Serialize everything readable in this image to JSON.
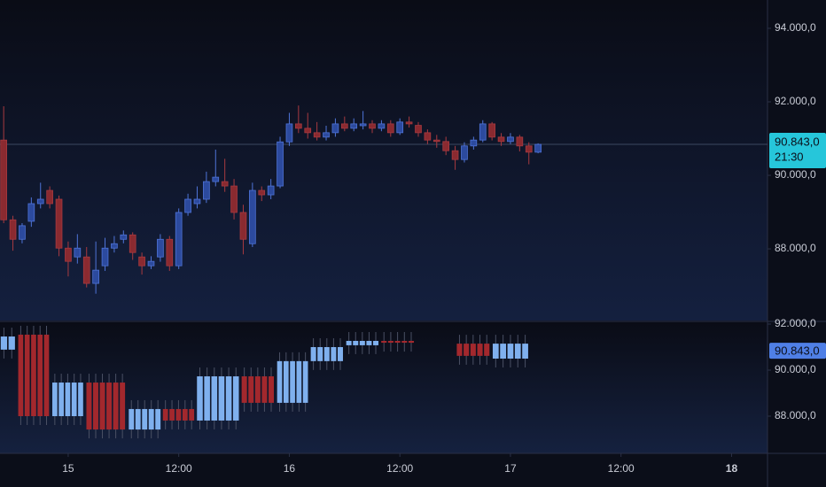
{
  "chart_data": [
    {
      "type": "candlestick",
      "x": [
        -7,
        -6,
        -5,
        -4,
        -3,
        -2,
        -1,
        0,
        1,
        2,
        3,
        4,
        5,
        6,
        7,
        8,
        9,
        10,
        11,
        12,
        13,
        14,
        15,
        16,
        17,
        18,
        19,
        20,
        21,
        22,
        23,
        24,
        25,
        26,
        27,
        28,
        29,
        30,
        31,
        32,
        33,
        34,
        35,
        36,
        37,
        38,
        39,
        40,
        41,
        42,
        43,
        44,
        45,
        46,
        47,
        48,
        49,
        50,
        51
      ],
      "open": [
        90960,
        88790,
        88260,
        88750,
        89230,
        89590,
        89350,
        88020,
        87780,
        87780,
        87060,
        87540,
        88020,
        88260,
        88380,
        87780,
        87540,
        87780,
        88260,
        87540,
        88990,
        89230,
        89350,
        89830,
        89830,
        89710,
        88990,
        88140,
        89590,
        89470,
        89710,
        90910,
        91400,
        91280,
        91160,
        91040,
        91160,
        91400,
        91280,
        91350,
        91400,
        91280,
        91400,
        91160,
        91450,
        91360,
        91160,
        90960,
        90920,
        90670,
        90430,
        90800,
        90960,
        91400,
        91040,
        90920,
        91040,
        90800,
        90630
      ],
      "high": [
        91880,
        88900,
        88700,
        89400,
        89800,
        89700,
        89450,
        88200,
        88400,
        88050,
        88200,
        88300,
        88350,
        88500,
        88450,
        87900,
        87800,
        88400,
        88350,
        89100,
        89500,
        89700,
        90100,
        90700,
        90450,
        89900,
        89200,
        89800,
        89700,
        89900,
        91050,
        91700,
        91900,
        91700,
        91450,
        91350,
        91550,
        91600,
        91550,
        91750,
        91500,
        91500,
        91500,
        91550,
        91600,
        91450,
        91250,
        91100,
        91050,
        90800,
        90900,
        91050,
        91500,
        91450,
        91150,
        91150,
        91100,
        90900,
        90870
      ],
      "low": [
        88700,
        87950,
        88150,
        88600,
        89100,
        89100,
        87800,
        87250,
        87600,
        86950,
        86780,
        87400,
        87900,
        88150,
        87700,
        87300,
        87450,
        87650,
        87400,
        87450,
        88900,
        89100,
        89250,
        89700,
        89550,
        88800,
        87850,
        88050,
        89300,
        89350,
        89650,
        90800,
        91150,
        91000,
        90950,
        90950,
        91050,
        91200,
        91200,
        91250,
        91150,
        91200,
        91050,
        91100,
        91300,
        91050,
        90850,
        90750,
        90550,
        90150,
        90350,
        90700,
        90900,
        90950,
        90800,
        90850,
        90650,
        90300,
        90600
      ],
      "close": [
        88790,
        88260,
        88630,
        89230,
        89350,
        89230,
        88020,
        87660,
        88020,
        87060,
        87420,
        88020,
        88140,
        88380,
        87900,
        87540,
        87660,
        88260,
        87540,
        88990,
        89350,
        89350,
        89830,
        89950,
        89710,
        88990,
        88260,
        89590,
        89470,
        89710,
        90910,
        91400,
        91280,
        91160,
        91040,
        91160,
        91400,
        91280,
        91400,
        91400,
        91280,
        91400,
        91160,
        91450,
        91400,
        91160,
        90960,
        90920,
        90670,
        90430,
        90800,
        90960,
        91400,
        91040,
        90920,
        91040,
        90800,
        90630,
        90843
      ],
      "up_color": "#2c4a9e",
      "down_color": "#8a2a30",
      "xlim": [
        -7.4,
        75.9
      ],
      "xticks": [
        {
          "value": 0,
          "label": "15"
        },
        {
          "value": 12,
          "label": "12:00"
        },
        {
          "value": 24,
          "label": "16"
        },
        {
          "value": 36,
          "label": "12:00"
        },
        {
          "value": 48,
          "label": "17"
        },
        {
          "value": 60,
          "label": "12:00"
        },
        {
          "value": 72,
          "label": "18"
        }
      ],
      "ylim": [
        86050,
        94770
      ],
      "yticks": [
        {
          "value": 88000,
          "label": "88.000,0"
        },
        {
          "value": 90000,
          "label": "90.000,0"
        },
        {
          "value": 92000,
          "label": "92.000,0"
        },
        {
          "value": 94000,
          "label": "94.000,0"
        }
      ],
      "last_price": {
        "value": 90843,
        "label": "90.843,0"
      },
      "countdown": "21:30"
    },
    {
      "type": "range-boxes",
      "x0": [
        -7.4,
        -5.5,
        -1.8,
        1.9,
        6.5,
        10.2,
        13.9,
        18.75,
        22.6,
        26.25,
        30.1,
        33.9,
        42.1,
        46.0
      ],
      "x1": [
        -5.7,
        -2.0,
        1.7,
        6.25,
        10.1,
        13.75,
        18.6,
        22.4,
        26.1,
        29.9,
        33.75,
        37.6,
        45.8,
        50.0
      ],
      "low": [
        90890,
        88000,
        88000,
        87420,
        87420,
        87810,
        87810,
        88580,
        88580,
        90390,
        91080,
        91190,
        90620,
        90500
      ],
      "high": [
        91460,
        91540,
        89460,
        89460,
        88310,
        88310,
        89730,
        89730,
        90390,
        91000,
        91270,
        91270,
        91150,
        91150
      ],
      "colors": [
        "#7fb0ee",
        "#a3282d",
        "#7fb0ee",
        "#a3282d",
        "#7fb0ee",
        "#a3282d",
        "#7fb0ee",
        "#a3282d",
        "#7fb0ee",
        "#7fb0ee",
        "#7fb0ee",
        "#a3282d",
        "#a3282d",
        "#7fb0ee"
      ],
      "ylim": [
        86385,
        92077
      ],
      "yticks": [
        {
          "value": 88000,
          "label": "88.000,0"
        },
        {
          "value": 90000,
          "label": "90.000,0"
        },
        {
          "value": 92000,
          "label": "92.000,0"
        }
      ]
    }
  ]
}
